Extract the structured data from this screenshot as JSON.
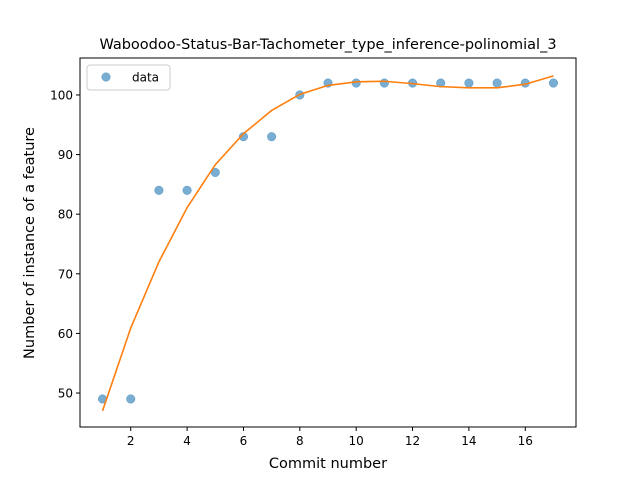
{
  "chart_data": {
    "type": "scatter",
    "title": "Waboodoo-Status-Bar-Tachometer_type_inference-polinomial_3",
    "xlabel": "Commit number",
    "ylabel": "Number of instance of a feature",
    "xlim": [
      0.2,
      17.8
    ],
    "ylim": [
      44.3,
      106.2
    ],
    "xticks": [
      2,
      4,
      6,
      8,
      10,
      12,
      14,
      16
    ],
    "yticks": [
      50,
      60,
      70,
      80,
      90,
      100
    ],
    "grid": false,
    "legend": {
      "position": "top-left",
      "entries": [
        "data"
      ]
    },
    "series": [
      {
        "name": "data",
        "kind": "scatter",
        "color": "#1f77b4",
        "x": [
          1,
          2,
          3,
          4,
          5,
          6,
          7,
          8,
          9,
          10,
          11,
          12,
          13,
          14,
          15,
          16,
          17
        ],
        "y": [
          49,
          49,
          84,
          84,
          87,
          93,
          93,
          100,
          102,
          102,
          102,
          102,
          102,
          102,
          102,
          102,
          102
        ]
      },
      {
        "kind": "line",
        "color": "#ff7f0e",
        "x": [
          1,
          2,
          3,
          4,
          5,
          6,
          7,
          8,
          9,
          10,
          11,
          12,
          13,
          14,
          15,
          16,
          17
        ],
        "y": [
          47.0,
          60.9,
          72.0,
          81.1,
          88.3,
          93.5,
          97.4,
          100.1,
          101.6,
          102.2,
          102.3,
          101.9,
          101.4,
          101.2,
          101.2,
          101.8,
          103.2
        ]
      }
    ]
  }
}
